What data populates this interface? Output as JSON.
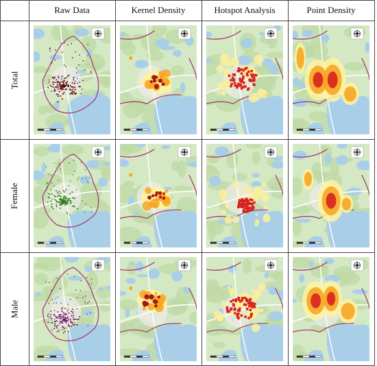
{
  "column_headers": [
    "Raw Data",
    "Kernel Density",
    "Hotspot Analysis",
    "Point Density"
  ],
  "row_headers": [
    "Total",
    "Female",
    "Male"
  ],
  "colors": {
    "land": "#d5e8c4",
    "forest": "#bfdaa6",
    "water": "#a9cfe8",
    "settlement": "#ecebe6",
    "boundary": "#a1407a",
    "road": "#ffffff",
    "total_points": "#5c0a0a",
    "female_points": "#2e7d1e",
    "male_points": "#7a1f6e",
    "kde_low": "#fff2a0",
    "kde_mid": "#f6a623",
    "kde_high": "#a31616",
    "hotspot_hot": "#d7221f",
    "hotspot_low": "#fbef9a"
  },
  "icons": [
    "compass-rose-icon",
    "scale-bar-icon"
  ]
}
